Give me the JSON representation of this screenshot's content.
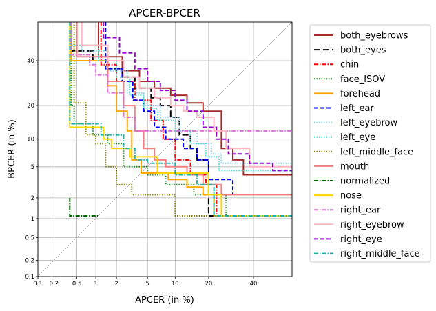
{
  "chart_data": {
    "type": "line",
    "title": "APCER-BPCER",
    "xlabel": "APCER (in %)",
    "ylabel": "BPCER (in %)",
    "xscale": "probit",
    "yscale": "probit",
    "xlim": [
      0.1,
      60
    ],
    "ylim": [
      0.1,
      60
    ],
    "xticks": [
      "0.1",
      "0.2",
      "0.5",
      "1",
      "2",
      "5",
      "10",
      "20",
      "40"
    ],
    "yticks": [
      "0.1",
      "0.2",
      "0.5",
      "1",
      "2",
      "5",
      "10",
      "20",
      "40"
    ],
    "grid": true,
    "legend_position": "outside-right",
    "diagonal_reference": true,
    "series": [
      {
        "name": "both_eyebrows",
        "color": "#a52a2a",
        "dash": "solid",
        "points": [
          [
            1.1,
            60
          ],
          [
            1.1,
            42
          ],
          [
            2.4,
            42
          ],
          [
            2.4,
            35
          ],
          [
            4,
            35
          ],
          [
            4,
            30
          ],
          [
            6,
            30
          ],
          [
            6,
            27
          ],
          [
            9,
            27
          ],
          [
            9,
            24
          ],
          [
            13,
            24
          ],
          [
            13,
            21
          ],
          [
            18,
            21
          ],
          [
            18,
            18
          ],
          [
            25,
            18
          ],
          [
            25,
            8
          ],
          [
            30,
            8
          ],
          [
            30,
            6
          ],
          [
            35,
            6
          ],
          [
            35,
            4
          ],
          [
            60,
            4
          ]
        ]
      },
      {
        "name": "both_eyes",
        "color": "#000000",
        "dash": "9,4",
        "points": [
          [
            0.4,
            60
          ],
          [
            0.4,
            45
          ],
          [
            0.9,
            45
          ],
          [
            0.9,
            40
          ],
          [
            1.5,
            40
          ],
          [
            1.5,
            36
          ],
          [
            2.4,
            36
          ],
          [
            2.4,
            32
          ],
          [
            3.5,
            32
          ],
          [
            3.5,
            27
          ],
          [
            5.5,
            27
          ],
          [
            5.5,
            23
          ],
          [
            7,
            23
          ],
          [
            7,
            20
          ],
          [
            9,
            20
          ],
          [
            9,
            16
          ],
          [
            11,
            16
          ],
          [
            11,
            11
          ],
          [
            14,
            11
          ],
          [
            14,
            8
          ],
          [
            16,
            8
          ],
          [
            16,
            6
          ],
          [
            20,
            6
          ],
          [
            20,
            1.1
          ],
          [
            60,
            1.1
          ]
        ]
      },
      {
        "name": "chin",
        "color": "#ff0000",
        "dash": "6,2,1.5,2",
        "points": [
          [
            1.2,
            60
          ],
          [
            1.2,
            38
          ],
          [
            2,
            38
          ],
          [
            2,
            30
          ],
          [
            3.5,
            30
          ],
          [
            3.5,
            22
          ],
          [
            5.5,
            22
          ],
          [
            5.5,
            15
          ],
          [
            7.5,
            15
          ],
          [
            7.5,
            10
          ],
          [
            10,
            10
          ],
          [
            10,
            6
          ],
          [
            14,
            6
          ],
          [
            14,
            4
          ],
          [
            19,
            4
          ],
          [
            19,
            3
          ],
          [
            23,
            3
          ],
          [
            23,
            1.1
          ],
          [
            60,
            1.1
          ]
        ]
      },
      {
        "name": "face_ISOV",
        "color": "#228b22",
        "dash": "1.5,2",
        "points": [
          [
            0.4,
            60
          ],
          [
            0.4,
            20
          ],
          [
            0.45,
            20
          ],
          [
            0.45,
            14
          ],
          [
            0.9,
            14
          ],
          [
            0.9,
            11
          ],
          [
            1.5,
            11
          ],
          [
            1.5,
            9
          ],
          [
            2.5,
            9
          ],
          [
            2.5,
            5
          ],
          [
            5,
            5
          ],
          [
            5,
            4
          ],
          [
            8,
            4
          ],
          [
            8,
            3
          ],
          [
            15,
            3
          ],
          [
            15,
            2.2
          ],
          [
            27,
            2.2
          ],
          [
            27,
            1.1
          ],
          [
            60,
            1.1
          ]
        ]
      },
      {
        "name": "forehead",
        "color": "#ffa500",
        "dash": "solid",
        "points": [
          [
            0.4,
            60
          ],
          [
            0.4,
            40
          ],
          [
            1.5,
            40
          ],
          [
            1.5,
            28
          ],
          [
            2,
            28
          ],
          [
            2,
            18
          ],
          [
            2.8,
            18
          ],
          [
            2.8,
            12
          ],
          [
            3.2,
            12
          ],
          [
            3.2,
            6
          ],
          [
            4.2,
            6
          ],
          [
            4.2,
            4.2
          ],
          [
            8.5,
            4.2
          ],
          [
            8.5,
            3.5
          ],
          [
            13,
            3.5
          ],
          [
            13,
            2.8
          ],
          [
            18,
            2.8
          ],
          [
            18,
            2.2
          ],
          [
            22,
            2.2
          ],
          [
            22,
            1.1
          ],
          [
            60,
            1.1
          ]
        ]
      },
      {
        "name": "left_ear",
        "color": "#0000ff",
        "dash": "6,3",
        "points": [
          [
            1.4,
            60
          ],
          [
            1.4,
            36
          ],
          [
            2.4,
            36
          ],
          [
            2.4,
            30
          ],
          [
            3.3,
            30
          ],
          [
            3.3,
            22
          ],
          [
            4.5,
            22
          ],
          [
            4.5,
            18
          ],
          [
            6,
            18
          ],
          [
            6,
            13
          ],
          [
            8,
            13
          ],
          [
            8,
            10
          ],
          [
            12,
            10
          ],
          [
            12,
            8
          ],
          [
            16,
            8
          ],
          [
            16,
            6
          ],
          [
            20,
            6
          ],
          [
            20,
            3.5
          ],
          [
            30,
            3.5
          ],
          [
            30,
            2.2
          ],
          [
            60,
            2.2
          ]
        ]
      },
      {
        "name": "left_eyebrow",
        "color": "#87ceeb",
        "dash": "1.5,2",
        "points": [
          [
            0.6,
            60
          ],
          [
            0.6,
            45
          ],
          [
            1.5,
            45
          ],
          [
            1.5,
            35
          ],
          [
            2.8,
            35
          ],
          [
            2.8,
            25
          ],
          [
            4.5,
            25
          ],
          [
            4.5,
            20
          ],
          [
            7,
            20
          ],
          [
            7,
            16
          ],
          [
            11,
            16
          ],
          [
            11,
            12
          ],
          [
            16,
            12
          ],
          [
            16,
            9
          ],
          [
            21,
            9
          ],
          [
            21,
            7
          ],
          [
            25,
            7
          ],
          [
            25,
            5.5
          ],
          [
            60,
            5.5
          ]
        ]
      },
      {
        "name": "left_eye",
        "color": "#40e0d0",
        "dash": "1.5,2",
        "points": [
          [
            0.4,
            60
          ],
          [
            0.4,
            48
          ],
          [
            1.1,
            48
          ],
          [
            1.1,
            40
          ],
          [
            2,
            40
          ],
          [
            2,
            32
          ],
          [
            3,
            32
          ],
          [
            3,
            24
          ],
          [
            4.5,
            24
          ],
          [
            4.5,
            19
          ],
          [
            6.5,
            19
          ],
          [
            6.5,
            15
          ],
          [
            10,
            15
          ],
          [
            10,
            12
          ],
          [
            14,
            12
          ],
          [
            14,
            9
          ],
          [
            19,
            9
          ],
          [
            19,
            6.5
          ],
          [
            24,
            6.5
          ],
          [
            24,
            4.5
          ],
          [
            60,
            4.5
          ]
        ]
      },
      {
        "name": "left_middle_face",
        "color": "#808000",
        "dash": "1.5,2",
        "points": [
          [
            0.45,
            60
          ],
          [
            0.45,
            21
          ],
          [
            0.7,
            21
          ],
          [
            0.7,
            11
          ],
          [
            1,
            11
          ],
          [
            1,
            9
          ],
          [
            1.4,
            9
          ],
          [
            1.4,
            5
          ],
          [
            2,
            5
          ],
          [
            2,
            3
          ],
          [
            3.2,
            3
          ],
          [
            3.2,
            2.2
          ],
          [
            10,
            2.2
          ],
          [
            10,
            1.1
          ],
          [
            20,
            1.1
          ]
        ]
      },
      {
        "name": "mouth",
        "color": "#f08080",
        "dash": "solid",
        "points": [
          [
            0.5,
            60
          ],
          [
            0.5,
            42
          ],
          [
            1.5,
            42
          ],
          [
            1.5,
            30
          ],
          [
            2.5,
            30
          ],
          [
            2.5,
            20
          ],
          [
            3.5,
            20
          ],
          [
            3.5,
            12
          ],
          [
            4.5,
            12
          ],
          [
            4.5,
            8
          ],
          [
            6,
            8
          ],
          [
            6,
            6
          ],
          [
            8,
            6
          ],
          [
            8,
            5
          ],
          [
            13,
            5
          ],
          [
            13,
            4
          ],
          [
            18,
            4
          ],
          [
            18,
            3
          ],
          [
            25,
            3
          ],
          [
            25,
            2.2
          ],
          [
            60,
            2.2
          ]
        ]
      },
      {
        "name": "normalized",
        "color": "#006400",
        "dash": "6,2,1.5,2",
        "points": [
          [
            0.38,
            2
          ],
          [
            0.38,
            1.1
          ],
          [
            1.1,
            1.1
          ]
        ]
      },
      {
        "name": "nose",
        "color": "#ffd700",
        "dash": "solid",
        "points": [
          [
            0.38,
            60
          ],
          [
            0.38,
            13
          ],
          [
            1.3,
            13
          ],
          [
            1.3,
            10
          ],
          [
            1.7,
            10
          ],
          [
            1.7,
            8
          ],
          [
            3,
            8
          ],
          [
            3,
            6.5
          ],
          [
            6.5,
            6.5
          ],
          [
            6.5,
            4.2
          ],
          [
            20,
            4.2
          ],
          [
            20,
            2.2
          ],
          [
            25,
            2.2
          ],
          [
            25,
            1.1
          ],
          [
            60,
            1.1
          ]
        ]
      },
      {
        "name": "right_ear",
        "color": "#da70d6",
        "dash": "6,2,1.5,2",
        "points": [
          [
            0.4,
            60
          ],
          [
            0.4,
            43
          ],
          [
            0.8,
            43
          ],
          [
            0.8,
            38
          ],
          [
            1,
            38
          ],
          [
            1,
            33
          ],
          [
            1.5,
            33
          ],
          [
            1.5,
            25
          ],
          [
            2.5,
            25
          ],
          [
            2.5,
            16
          ],
          [
            3.5,
            16
          ],
          [
            3.5,
            12
          ],
          [
            60,
            12
          ]
        ]
      },
      {
        "name": "right_eyebrow",
        "color": "#ffb6c1",
        "dash": "solid",
        "points": [
          [
            0.6,
            60
          ],
          [
            0.6,
            48
          ],
          [
            1.5,
            48
          ],
          [
            1.5,
            40
          ],
          [
            2.5,
            40
          ],
          [
            2.5,
            32
          ],
          [
            4,
            32
          ],
          [
            4,
            27
          ],
          [
            6,
            27
          ],
          [
            6,
            23
          ],
          [
            9,
            23
          ],
          [
            9,
            20
          ],
          [
            12,
            20
          ],
          [
            12,
            18
          ],
          [
            16,
            18
          ],
          [
            16,
            16
          ],
          [
            22,
            16
          ],
          [
            22,
            12
          ],
          [
            27,
            12
          ],
          [
            27,
            8
          ],
          [
            38,
            8
          ],
          [
            38,
            5
          ],
          [
            60,
            5
          ]
        ]
      },
      {
        "name": "right_eye",
        "color": "#9400d3",
        "dash": "6,3",
        "points": [
          [
            1.3,
            60
          ],
          [
            1.3,
            52
          ],
          [
            2.2,
            52
          ],
          [
            2.2,
            44
          ],
          [
            3.5,
            44
          ],
          [
            3.5,
            36
          ],
          [
            5,
            36
          ],
          [
            5,
            30
          ],
          [
            7,
            30
          ],
          [
            7,
            26
          ],
          [
            10,
            26
          ],
          [
            10,
            22
          ],
          [
            13,
            22
          ],
          [
            13,
            18
          ],
          [
            18,
            18
          ],
          [
            18,
            13
          ],
          [
            23,
            13
          ],
          [
            23,
            10
          ],
          [
            28,
            10
          ],
          [
            28,
            7
          ],
          [
            38,
            7
          ],
          [
            38,
            5.5
          ],
          [
            50,
            5.5
          ],
          [
            50,
            4.5
          ],
          [
            60,
            4.5
          ]
        ]
      },
      {
        "name": "right_middle_face",
        "color": "#20b2aa",
        "dash": "6,2,1.5,2",
        "points": [
          [
            0.38,
            60
          ],
          [
            0.38,
            14
          ],
          [
            1.2,
            14
          ],
          [
            1.2,
            11
          ],
          [
            2.5,
            11
          ],
          [
            2.5,
            8
          ],
          [
            3.5,
            8
          ],
          [
            3.5,
            6
          ],
          [
            5,
            6
          ],
          [
            5,
            5.5
          ],
          [
            10,
            5.5
          ],
          [
            10,
            4
          ],
          [
            16,
            4
          ],
          [
            16,
            3
          ],
          [
            22,
            3
          ],
          [
            22,
            1.1
          ],
          [
            60,
            1.1
          ]
        ]
      }
    ]
  }
}
